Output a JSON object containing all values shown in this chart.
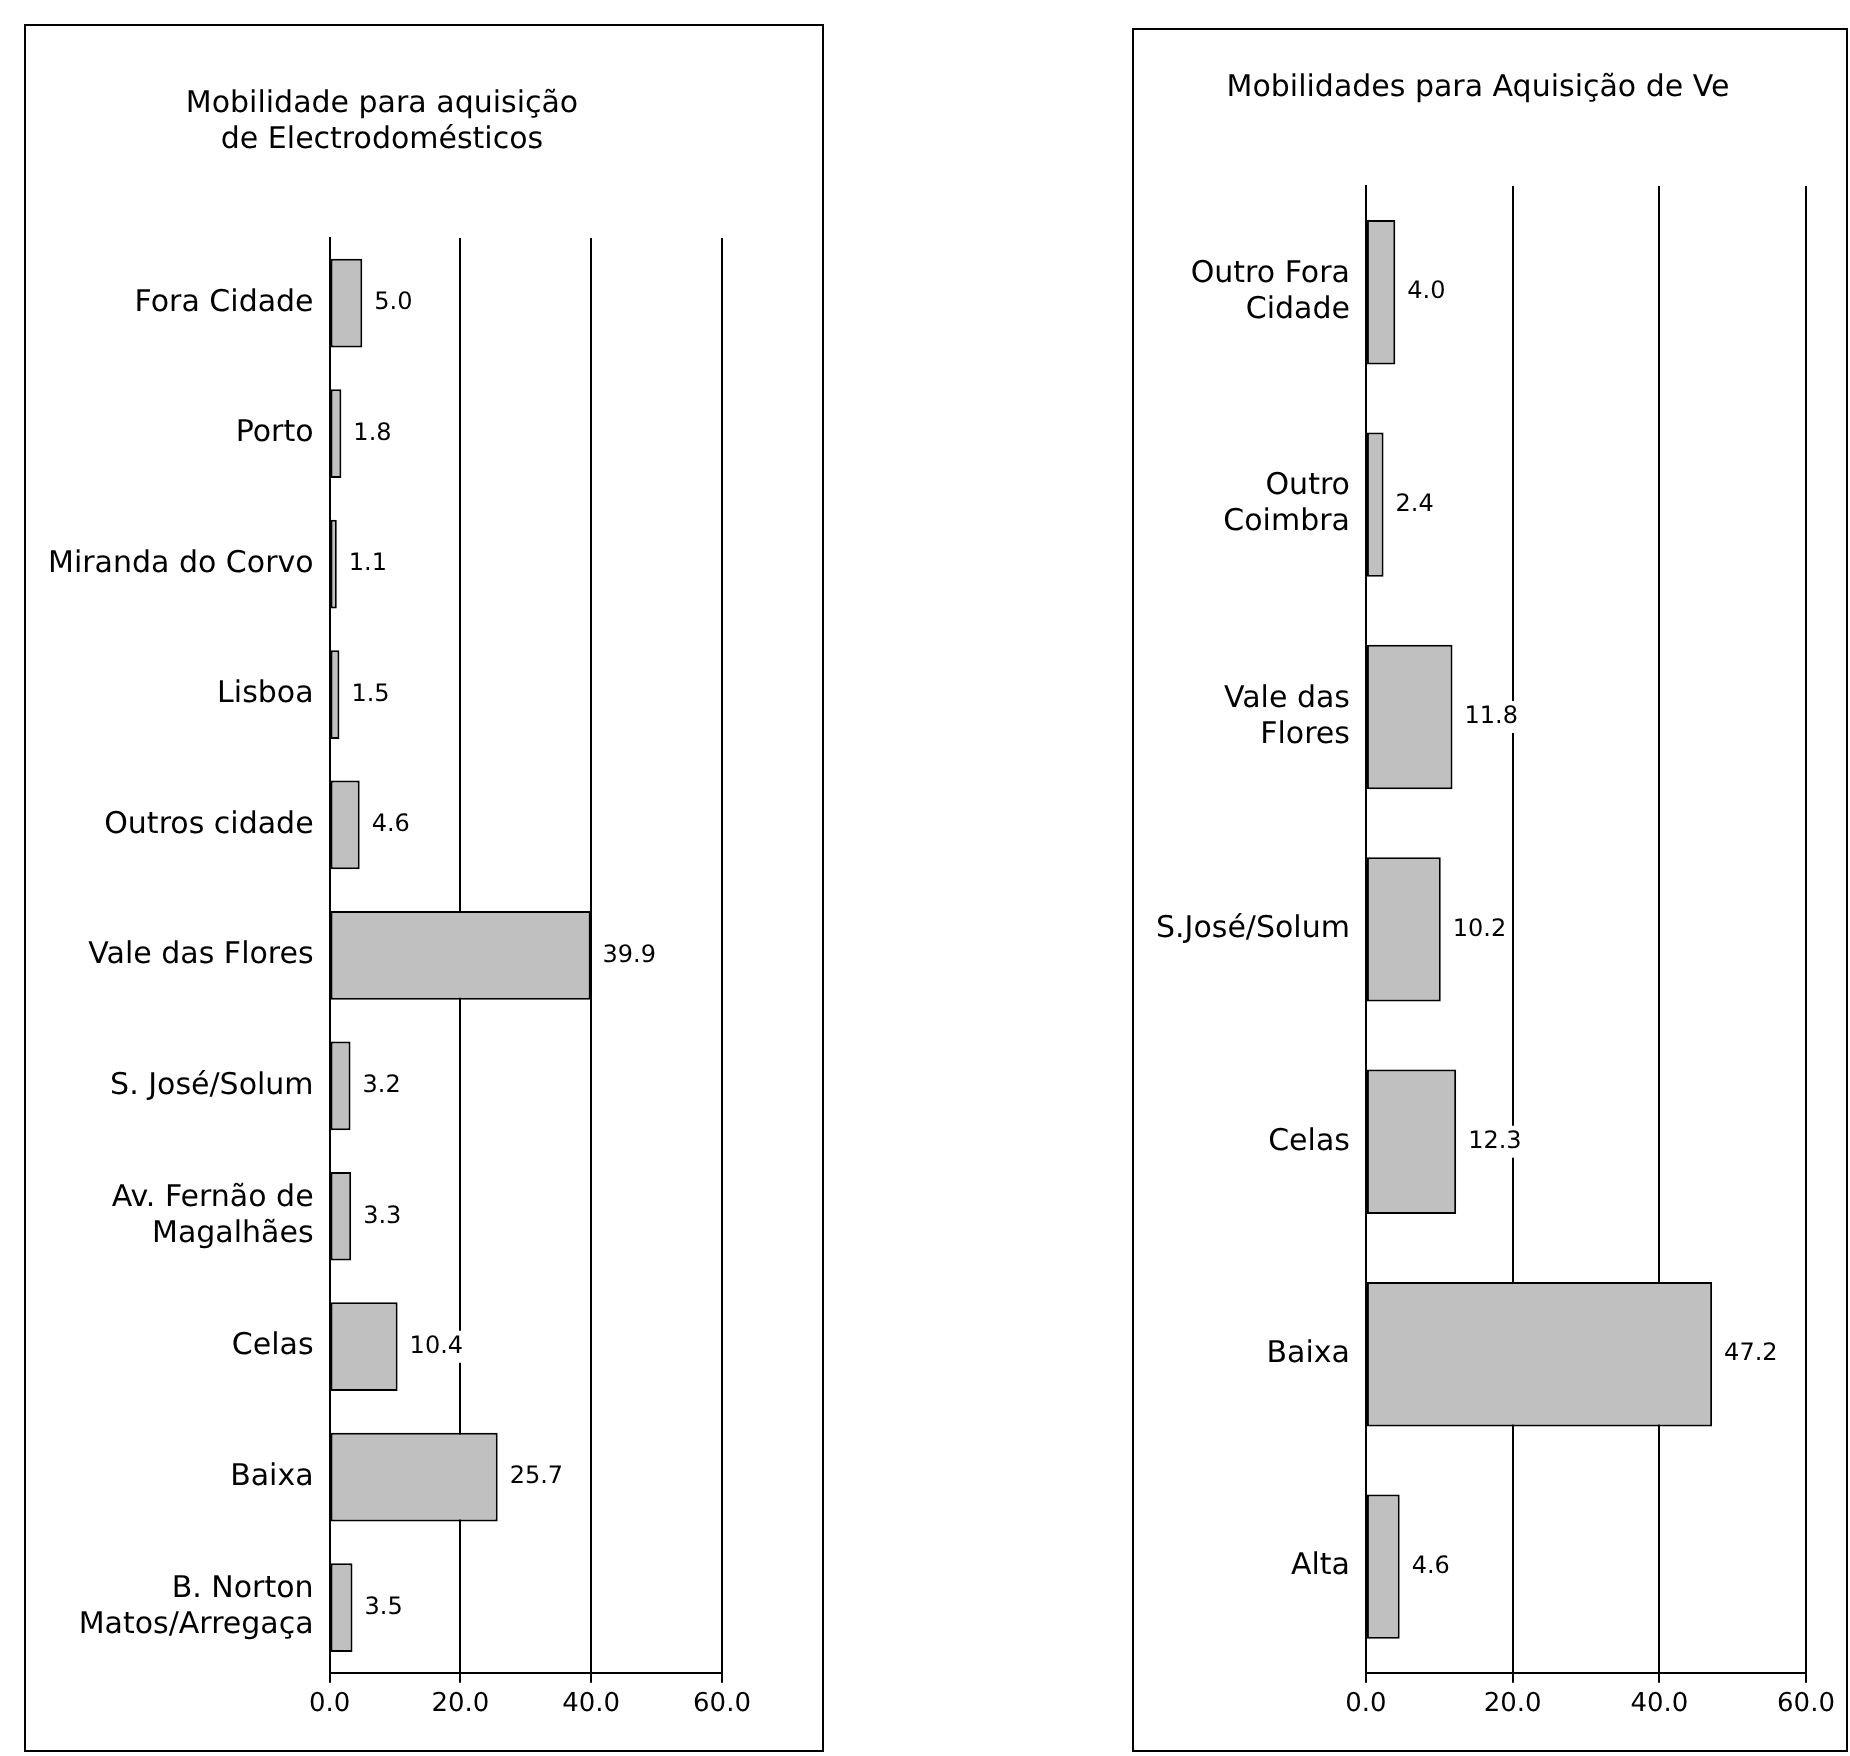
{
  "chart_data": [
    {
      "type": "bar",
      "orientation": "horizontal",
      "title": "Mobilidade para aquisição de Electrodomésticos",
      "categories": [
        "Fora Cidade",
        "Porto",
        "Miranda do Corvo",
        "Lisboa",
        "Outros cidade",
        "Vale das Flores",
        "S. José/Solum",
        "Av. Fernão de Magalhães",
        "Celas",
        "Baixa",
        "B. Norton Matos/Arregaça"
      ],
      "values": [
        5.0,
        1.8,
        1.1,
        1.5,
        4.6,
        39.9,
        3.2,
        3.3,
        10.4,
        25.7,
        3.5
      ],
      "value_labels": [
        "5.0",
        "1.8",
        "1.1",
        "1.5",
        "4.6",
        "39.9",
        "3.2",
        "3.3",
        "10.4",
        "25.7",
        "3.5"
      ],
      "color": "#c0c0c0",
      "xlim": [
        0,
        60
      ],
      "xticks": [
        {
          "value": 0,
          "label": "0.0"
        },
        {
          "value": 20,
          "label": "20.0"
        },
        {
          "value": 40,
          "label": "40.0"
        },
        {
          "value": 60,
          "label": "60.0"
        }
      ],
      "grid": "x",
      "legend": false
    },
    {
      "type": "bar",
      "orientation": "horizontal",
      "title": "Mobilidades para Aquisição de Ve",
      "categories": [
        "Outro Fora Cidade",
        "Outro Coimbra",
        "Vale das Flores",
        "S.José/Solum",
        "Celas",
        "Baixa",
        "Alta"
      ],
      "values": [
        4.0,
        2.4,
        11.8,
        10.2,
        12.3,
        47.2,
        4.6
      ],
      "value_labels": [
        "4.0",
        "2.4",
        "11.8",
        "10.2",
        "12.3",
        "47.2",
        "4.6"
      ],
      "color": "#c0c0c0",
      "xlim": [
        0,
        60
      ],
      "xticks": [
        {
          "value": 0,
          "label": "0.0"
        },
        {
          "value": 20,
          "label": "20.0"
        },
        {
          "value": 40,
          "label": "40.0"
        },
        {
          "value": 60,
          "label": "60.0"
        }
      ],
      "grid": "x",
      "legend": false
    }
  ]
}
